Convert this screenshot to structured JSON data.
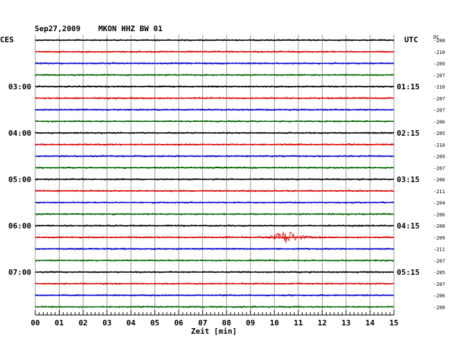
{
  "header": {
    "date": "Sep27,2009",
    "station": "MKON HHZ BW 01",
    "left_label": "CES",
    "right_label": "UTC",
    "dc_label": "DC"
  },
  "chart_data": {
    "type": "line",
    "title": "Sep27,2009   MKON HHZ BW 01",
    "xlabel": "Zeit [min]",
    "x_ticks": [
      "00",
      "01",
      "02",
      "03",
      "04",
      "05",
      "06",
      "07",
      "08",
      "09",
      "10",
      "11",
      "12",
      "13",
      "14",
      "15"
    ],
    "xlim": [
      0,
      15
    ],
    "grid": true,
    "trace_colors": [
      "#000000",
      "#dd0000",
      "#0000cc",
      "#006600"
    ],
    "local_time_labels": [
      "03:00",
      "04:00",
      "05:00",
      "06:00",
      "07:00"
    ],
    "utc_time_labels": [
      "01:15",
      "02:15",
      "03:15",
      "04:15",
      "05:15"
    ],
    "dc_offsets": [
      "-208",
      "-210",
      "-209",
      "-207",
      "-210",
      "-207",
      "-207",
      "-206",
      "-205",
      "-210",
      "-209",
      "-207",
      "-206",
      "-211",
      "-204",
      "-206",
      "-208",
      "-209",
      "-211",
      "-207",
      "-205",
      "-207",
      "-206",
      "-208"
    ],
    "event": {
      "trace_index": 17,
      "start_min": 9.6,
      "peak_min": 10.5,
      "end_min": 12.0
    }
  }
}
